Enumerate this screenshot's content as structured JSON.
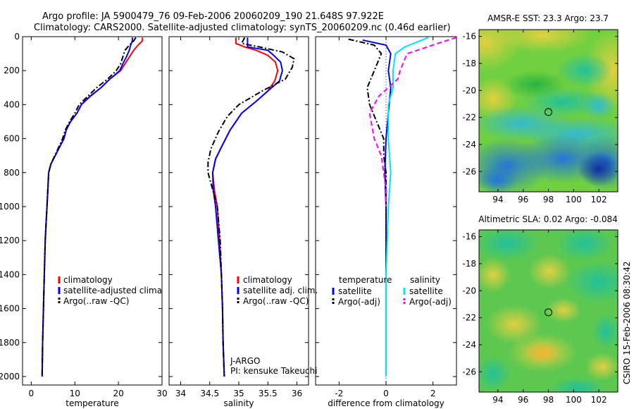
{
  "title_line1": "Argo profile: JA 5900479_76 09-Feb-2006 20060209_190 21.648S 97.922E",
  "title_line2": "Climatology: CARS2000. Satellite-adjusted climatology: synTS_20060209.nc (0.46d earlier)",
  "side_label": "CSIRO 15-Feb-2006 08:30:42",
  "colors": {
    "climatology": "#ff0000",
    "satellite": "#0000ff",
    "argo": "#000000",
    "sal_satellite": "#00e5ff",
    "sal_argo": "#ff00ff"
  },
  "chart_data": [
    {
      "type": "line",
      "name": "temperature",
      "xlabel": "temperature",
      "ylabel": "",
      "xlim": [
        -2,
        30
      ],
      "ylim": [
        2050,
        0
      ],
      "xticks": [
        0,
        10,
        20,
        30
      ],
      "yticks": [
        0,
        200,
        400,
        600,
        800,
        1000,
        1200,
        1400,
        1600,
        1800,
        2000
      ],
      "series": [
        {
          "name": "climatology",
          "color": "#ff0000",
          "dash": "solid",
          "points": [
            [
              25.5,
              5
            ],
            [
              25.5,
              25
            ],
            [
              24.5,
              50
            ],
            [
              23.5,
              80
            ],
            [
              22.5,
              120
            ],
            [
              21.5,
              160
            ],
            [
              20.5,
              200
            ],
            [
              18,
              250
            ],
            [
              16,
              300
            ],
            [
              13.5,
              350
            ],
            [
              11.5,
              400
            ],
            [
              10.5,
              450
            ],
            [
              9,
              500
            ],
            [
              8,
              550
            ],
            [
              7.5,
              600
            ],
            [
              6.5,
              650
            ],
            [
              5.5,
              700
            ],
            [
              4.5,
              750
            ],
            [
              4,
              800
            ],
            [
              3.8,
              900
            ],
            [
              3.6,
              1000
            ],
            [
              3.4,
              1100
            ],
            [
              3.2,
              1200
            ],
            [
              3,
              1400
            ],
            [
              2.8,
              1600
            ],
            [
              2.6,
              1800
            ],
            [
              2.5,
              2000
            ]
          ]
        },
        {
          "name": "satellite-adjusted climatology",
          "color": "#0000ff",
          "dash": "solid",
          "points": [
            [
              23.2,
              5
            ],
            [
              23.2,
              25
            ],
            [
              22.8,
              50
            ],
            [
              22.5,
              80
            ],
            [
              21.8,
              120
            ],
            [
              21,
              160
            ],
            [
              20.3,
              200
            ],
            [
              18,
              250
            ],
            [
              16,
              300
            ],
            [
              13.6,
              350
            ],
            [
              11.5,
              400
            ],
            [
              10.5,
              450
            ],
            [
              9,
              500
            ],
            [
              8,
              550
            ],
            [
              7.5,
              600
            ],
            [
              6.5,
              650
            ],
            [
              5.5,
              700
            ],
            [
              4.5,
              750
            ],
            [
              4,
              800
            ],
            [
              3.8,
              900
            ],
            [
              3.6,
              1000
            ],
            [
              3.4,
              1100
            ],
            [
              3.2,
              1200
            ],
            [
              3,
              1400
            ],
            [
              2.8,
              1600
            ],
            [
              2.6,
              1800
            ],
            [
              2.5,
              2000
            ]
          ]
        },
        {
          "name": "Argo(..raw -QC)",
          "color": "#000000",
          "dash": "dashdot",
          "points": [
            [
              24,
              5
            ],
            [
              23.5,
              25
            ],
            [
              22.5,
              50
            ],
            [
              21.5,
              80
            ],
            [
              21,
              120
            ],
            [
              20.5,
              160
            ],
            [
              19.5,
              200
            ],
            [
              17.5,
              250
            ],
            [
              15,
              300
            ],
            [
              13,
              350
            ],
            [
              11,
              400
            ],
            [
              10,
              450
            ],
            [
              8.8,
              500
            ],
            [
              7.8,
              550
            ],
            [
              7.2,
              600
            ],
            [
              6.3,
              650
            ],
            [
              5.4,
              700
            ],
            [
              4.5,
              750
            ],
            [
              4,
              800
            ],
            [
              3.8,
              900
            ],
            [
              3.6,
              1000
            ],
            [
              3.4,
              1100
            ],
            [
              3.2,
              1200
            ],
            [
              3,
              1400
            ],
            [
              2.8,
              1600
            ],
            [
              2.6,
              1800
            ],
            [
              2.5,
              2000
            ]
          ]
        }
      ],
      "legend": [
        "climatology",
        "satellite-adjusted climatology",
        "Argo(..raw -QC)"
      ]
    },
    {
      "type": "line",
      "name": "salinity",
      "xlabel": "salinity",
      "ylabel": "",
      "xlim": [
        33.8,
        36.2
      ],
      "ylim": [
        2050,
        0
      ],
      "xticks": [
        34,
        34.5,
        35,
        35.5,
        36
      ],
      "xticklabels": [
        "34",
        "34.5",
        "35",
        "35.5",
        "36"
      ],
      "series": [
        {
          "name": "climatology",
          "color": "#ff0000",
          "dash": "solid",
          "points": [
            [
              34.95,
              5
            ],
            [
              34.95,
              40
            ],
            [
              35.1,
              60
            ],
            [
              35.3,
              80
            ],
            [
              35.5,
              110
            ],
            [
              35.63,
              150
            ],
            [
              35.67,
              200
            ],
            [
              35.62,
              260
            ],
            [
              35.5,
              320
            ],
            [
              35.3,
              380
            ],
            [
              35.05,
              450
            ],
            [
              34.85,
              550
            ],
            [
              34.7,
              650
            ],
            [
              34.6,
              720
            ],
            [
              34.55,
              800
            ],
            [
              34.58,
              900
            ],
            [
              34.63,
              1000
            ],
            [
              34.67,
              1200
            ],
            [
              34.7,
              1400
            ],
            [
              34.72,
              1600
            ],
            [
              34.73,
              1800
            ],
            [
              34.75,
              2000
            ]
          ]
        },
        {
          "name": "satellite adj. clim.",
          "color": "#0000ff",
          "dash": "solid",
          "points": [
            [
              35.15,
              5
            ],
            [
              35.15,
              40
            ],
            [
              35.15,
              60
            ],
            [
              35.5,
              80
            ],
            [
              35.6,
              110
            ],
            [
              35.72,
              150
            ],
            [
              35.75,
              200
            ],
            [
              35.7,
              260
            ],
            [
              35.5,
              320
            ],
            [
              35.3,
              380
            ],
            [
              35.05,
              450
            ],
            [
              34.85,
              550
            ],
            [
              34.7,
              650
            ],
            [
              34.6,
              720
            ],
            [
              34.55,
              800
            ],
            [
              34.56,
              900
            ],
            [
              34.6,
              1000
            ],
            [
              34.65,
              1200
            ],
            [
              34.7,
              1400
            ],
            [
              34.72,
              1600
            ],
            [
              34.73,
              1800
            ],
            [
              34.75,
              2000
            ]
          ]
        },
        {
          "name": "Argo(..raw -QC)",
          "color": "#000000",
          "dash": "dashdot",
          "points": [
            [
              35.1,
              5
            ],
            [
              35.05,
              40
            ],
            [
              35.35,
              60
            ],
            [
              35.75,
              90
            ],
            [
              35.95,
              130
            ],
            [
              35.92,
              180
            ],
            [
              35.8,
              250
            ],
            [
              35.4,
              320
            ],
            [
              35,
              400
            ],
            [
              34.8,
              470
            ],
            [
              34.65,
              560
            ],
            [
              34.52,
              660
            ],
            [
              34.47,
              740
            ],
            [
              34.47,
              800
            ],
            [
              34.55,
              900
            ],
            [
              34.63,
              1000
            ],
            [
              34.68,
              1200
            ],
            [
              34.7,
              1400
            ],
            [
              34.72,
              1600
            ],
            [
              34.73,
              1800
            ],
            [
              34.75,
              2000
            ]
          ]
        }
      ],
      "legend": [
        "climatology",
        "satellite adj. clim.",
        "Argo(..raw -QC)"
      ],
      "annotation": [
        "J-ARGO",
        "PI: kensuke Takeuchi"
      ]
    },
    {
      "type": "line",
      "name": "difference",
      "xlabel": "difference from climatology",
      "ylabel": "",
      "xlim": [
        -3,
        3
      ],
      "ylim": [
        2050,
        0
      ],
      "xticks": [
        -2,
        0,
        2
      ],
      "zero_line": true,
      "series": [
        {
          "name": "temperature satellite",
          "color": "#0000ff",
          "dash": "solid",
          "points": [
            [
              -1,
              20
            ],
            [
              0,
              50
            ],
            [
              0.2,
              100
            ],
            [
              0.1,
              200
            ],
            [
              0.2,
              300
            ],
            [
              0.1,
              450
            ],
            [
              0,
              600
            ],
            [
              -0.05,
              800
            ],
            [
              0,
              1000
            ],
            [
              0,
              1400
            ],
            [
              0,
              2000
            ]
          ]
        },
        {
          "name": "temperature Argo(-adj)",
          "color": "#000000",
          "dash": "dashdot",
          "points": [
            [
              -1.6,
              15
            ],
            [
              -0.5,
              50
            ],
            [
              -0.2,
              100
            ],
            [
              -0.5,
              200
            ],
            [
              -0.8,
              300
            ],
            [
              -0.7,
              400
            ],
            [
              -0.4,
              500
            ],
            [
              -0.1,
              600
            ],
            [
              -0.1,
              700
            ],
            [
              0,
              800
            ],
            [
              0,
              1000
            ],
            [
              0,
              1400
            ],
            [
              0,
              2000
            ]
          ]
        },
        {
          "name": "salinity satellite",
          "color": "#00e5ff",
          "dash": "solid",
          "points": [
            [
              1.8,
              5
            ],
            [
              0.8,
              60
            ],
            [
              0.4,
              100
            ],
            [
              0.3,
              200
            ],
            [
              0.3,
              300
            ],
            [
              0.1,
              400
            ],
            [
              0.1,
              600
            ],
            [
              0.2,
              800
            ],
            [
              0.1,
              1000
            ],
            [
              0.05,
              1200
            ],
            [
              0,
              1400
            ],
            [
              0,
              2000
            ]
          ]
        },
        {
          "name": "salinity Argo(-adj)",
          "color": "#ff00ff",
          "dash": "dashed",
          "points": [
            [
              3,
              5
            ],
            [
              2.2,
              40
            ],
            [
              0.9,
              100
            ],
            [
              0.6,
              200
            ],
            [
              0.5,
              250
            ],
            [
              -0.3,
              350
            ],
            [
              -0.7,
              450
            ],
            [
              -0.5,
              600
            ],
            [
              -0.2,
              700
            ],
            [
              -0.1,
              800
            ],
            [
              0,
              900
            ],
            [
              0,
              1000
            ]
          ]
        }
      ],
      "legend_headers": [
        "temperature",
        "salinity"
      ],
      "legend": [
        "satellite",
        "Argo(-adj)",
        "satellite",
        "Argo(-adj)"
      ]
    },
    {
      "type": "heatmap",
      "name": "AMSR-E SST",
      "title": "AMSR-E SST: 23.3  Argo: 23.7",
      "xlim": [
        92.5,
        103.5
      ],
      "ylim": [
        -27.5,
        -15.5
      ],
      "xticks": [
        94,
        96,
        98,
        100,
        102
      ],
      "yticks": [
        -16,
        -18,
        -20,
        -22,
        -24,
        -26
      ],
      "marker": [
        98,
        -21.6
      ]
    },
    {
      "type": "heatmap",
      "name": "Altimetric SLA",
      "title": "Altimetric SLA: 0.02  Argo: -0.084",
      "xlim": [
        92.5,
        103.5
      ],
      "ylim": [
        -27.5,
        -15.5
      ],
      "xticks": [
        94,
        96,
        98,
        100,
        102
      ],
      "yticks": [
        -16,
        -18,
        -20,
        -22,
        -24,
        -26
      ],
      "marker": [
        98,
        -21.6
      ]
    }
  ]
}
